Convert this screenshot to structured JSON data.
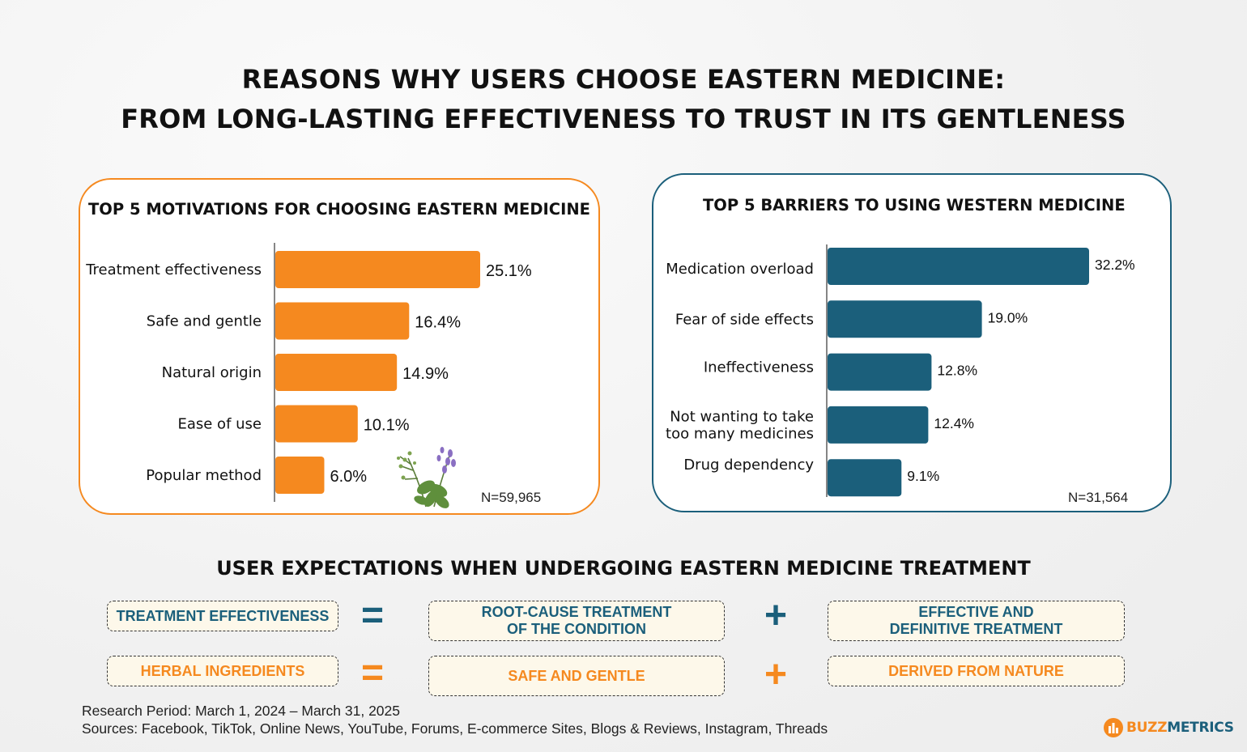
{
  "title": {
    "line1": "REASONS WHY USERS CHOOSE EASTERN MEDICINE:",
    "line2": "FROM LONG-LASTING EFFECTIVENESS TO TRUST IN ITS GENTLENESS"
  },
  "colors": {
    "orange": "#f5891f",
    "teal": "#1b5f7b"
  },
  "chart_data": [
    {
      "type": "bar",
      "orientation": "horizontal",
      "title": "TOP 5 MOTIVATIONS FOR CHOOSING EASTERN MEDICINE",
      "categories": [
        "Treatment effectiveness",
        "Safe and gentle",
        "Natural origin",
        "Ease of use",
        "Popular method"
      ],
      "values": [
        25.1,
        16.4,
        14.9,
        10.1,
        6.0
      ],
      "value_labels": [
        "25.1%",
        "16.4%",
        "14.9%",
        "10.1%",
        "6.0%"
      ],
      "unit": "%",
      "color": "#f5891f",
      "sample": "N=59,965"
    },
    {
      "type": "bar",
      "orientation": "horizontal",
      "title": "TOP 5 BARRIERS TO USING WESTERN MEDICINE",
      "categories": [
        "Medication overload",
        "Fear of side effects",
        "Ineffectiveness",
        "Not wanting to take\ntoo many medicines",
        "Drug dependency"
      ],
      "values": [
        32.2,
        19.0,
        12.8,
        12.4,
        9.1
      ],
      "value_labels": [
        "32.2%",
        "19.0%",
        "12.8%",
        "12.4%",
        "9.1%"
      ],
      "unit": "%",
      "color": "#1b5f7b",
      "sample": "N=31,564"
    }
  ],
  "expectations": {
    "title": "USER EXPECTATIONS WHEN UNDERGOING EASTERN MEDICINE TREATMENT",
    "row1": {
      "term": "TREATMENT EFFECTIVENESS",
      "equals": "=",
      "part1": "ROOT-CAUSE TREATMENT\nOF THE CONDITION",
      "plus": "+",
      "part2": "EFFECTIVE AND\nDEFINITIVE TREATMENT"
    },
    "row2": {
      "term": "HERBAL INGREDIENTS",
      "equals": "=",
      "part1": "SAFE AND GENTLE",
      "plus": "+",
      "part2": "DERIVED FROM NATURE"
    }
  },
  "footer": {
    "period": "Research Period: March 1, 2024 – March 31, 2025",
    "sources": "Sources: Facebook, TikTok, Online News, YouTube, Forums, E-commerce Sites, Blogs & Reviews, Instagram, Threads"
  },
  "logo": {
    "part1": "BUZZ",
    "part2": "METRICS"
  }
}
